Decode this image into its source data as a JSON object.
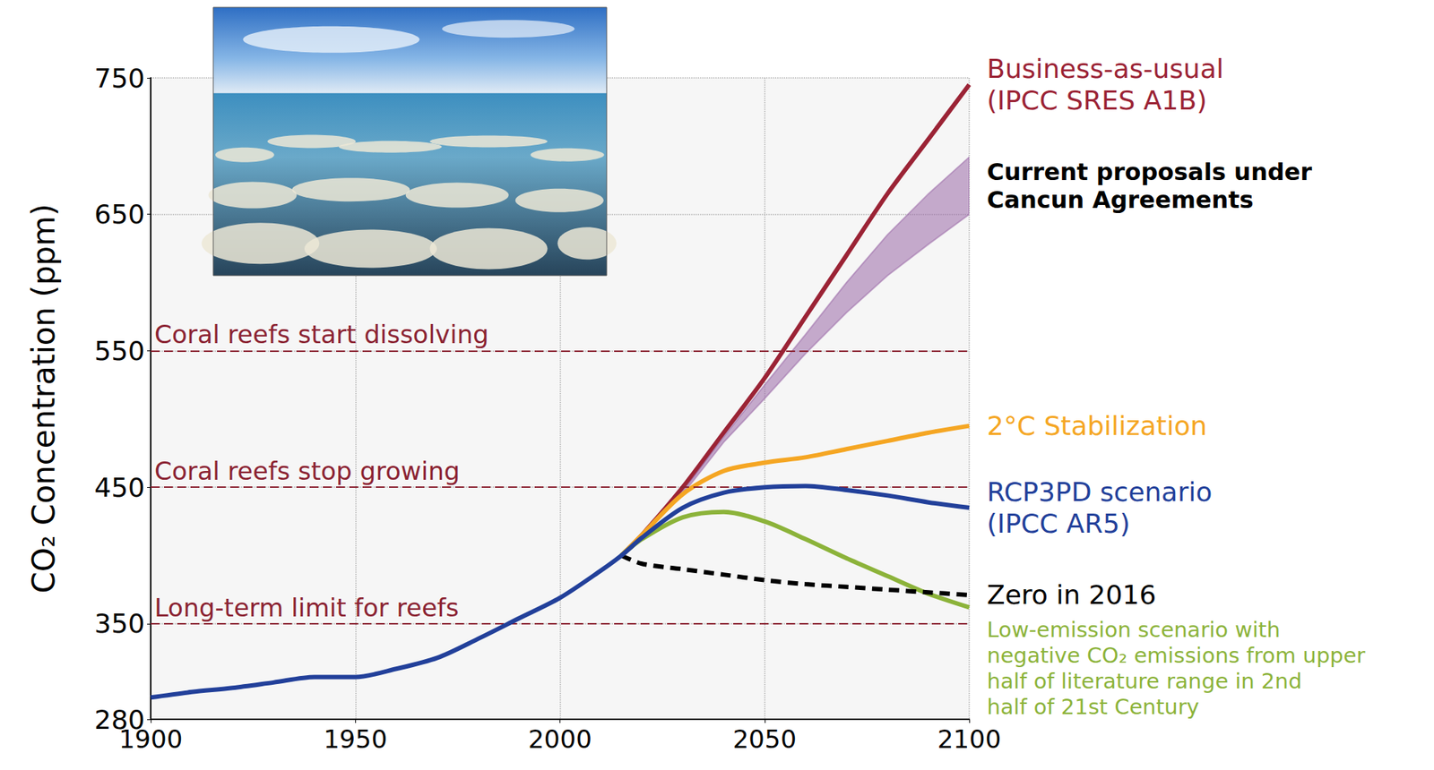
{
  "chart_data": {
    "type": "line",
    "y_label": "CO₂ Concentration (ppm)",
    "x": [
      1900,
      1910,
      1920,
      1930,
      1940,
      1950,
      1960,
      1970,
      1980,
      1990,
      2000,
      2010,
      2015,
      2020,
      2030,
      2040,
      2050,
      2060,
      2070,
      2080,
      2090,
      2100
    ],
    "xlim": [
      1900,
      2100
    ],
    "xticks": [
      1900,
      1950,
      2000,
      2050,
      2100
    ],
    "ylim": [
      280,
      750
    ],
    "yticks": [
      280,
      350,
      450,
      550,
      650,
      750
    ],
    "grid": true,
    "annotations": [
      {
        "text": "Coral reefs start dissolving",
        "y": 550
      },
      {
        "text": "Coral reefs stop growing",
        "y": 450
      },
      {
        "text": "Long-term limit for reefs",
        "y": 350
      }
    ],
    "series": [
      {
        "name": "Business-as-usual (IPCC SRES A1B)",
        "color": "#9b2335",
        "values": [
          null,
          null,
          null,
          null,
          null,
          null,
          null,
          null,
          null,
          null,
          null,
          null,
          400,
          415,
          450,
          490,
          530,
          575,
          620,
          665,
          705,
          745
        ]
      },
      {
        "name": "Current proposals under Cancun Agreements",
        "type": "band",
        "color": "#9b6aa8",
        "upper": [
          null,
          null,
          null,
          null,
          null,
          null,
          null,
          null,
          null,
          null,
          null,
          null,
          400,
          415,
          447,
          487,
          525,
          562,
          600,
          635,
          665,
          692
        ],
        "lower": [
          null,
          null,
          null,
          null,
          null,
          null,
          null,
          null,
          null,
          null,
          null,
          null,
          400,
          415,
          445,
          483,
          515,
          548,
          578,
          605,
          628,
          650
        ]
      },
      {
        "name": "2°C Stabilization",
        "color": "#f5a623",
        "values": [
          null,
          null,
          null,
          null,
          null,
          null,
          null,
          null,
          null,
          null,
          null,
          null,
          400,
          415,
          445,
          462,
          468,
          472,
          478,
          484,
          490,
          495
        ]
      },
      {
        "name": "Low-emission scenario with negative CO₂ emissions from upper half of literature range in 2nd half of 21st Century",
        "color": "#8cb33a",
        "values": [
          null,
          null,
          null,
          null,
          null,
          null,
          null,
          null,
          null,
          null,
          null,
          null,
          400,
          412,
          428,
          432,
          425,
          412,
          398,
          385,
          372,
          362
        ]
      },
      {
        "name": "Zero in 2016",
        "color": "#000000",
        "line_style": "dashed",
        "values": [
          null,
          null,
          null,
          null,
          null,
          null,
          null,
          null,
          null,
          null,
          null,
          null,
          400,
          394,
          390,
          386,
          382,
          379,
          377,
          375,
          373,
          371
        ]
      },
      {
        "name": "RCP3PD scenario (IPCC AR5)",
        "color": "#22409a",
        "values": [
          296,
          300,
          303,
          307,
          311,
          311,
          317,
          325,
          339,
          354,
          369,
          389,
          400,
          413,
          435,
          446,
          450,
          451,
          448,
          444,
          439,
          435
        ]
      }
    ]
  }
}
